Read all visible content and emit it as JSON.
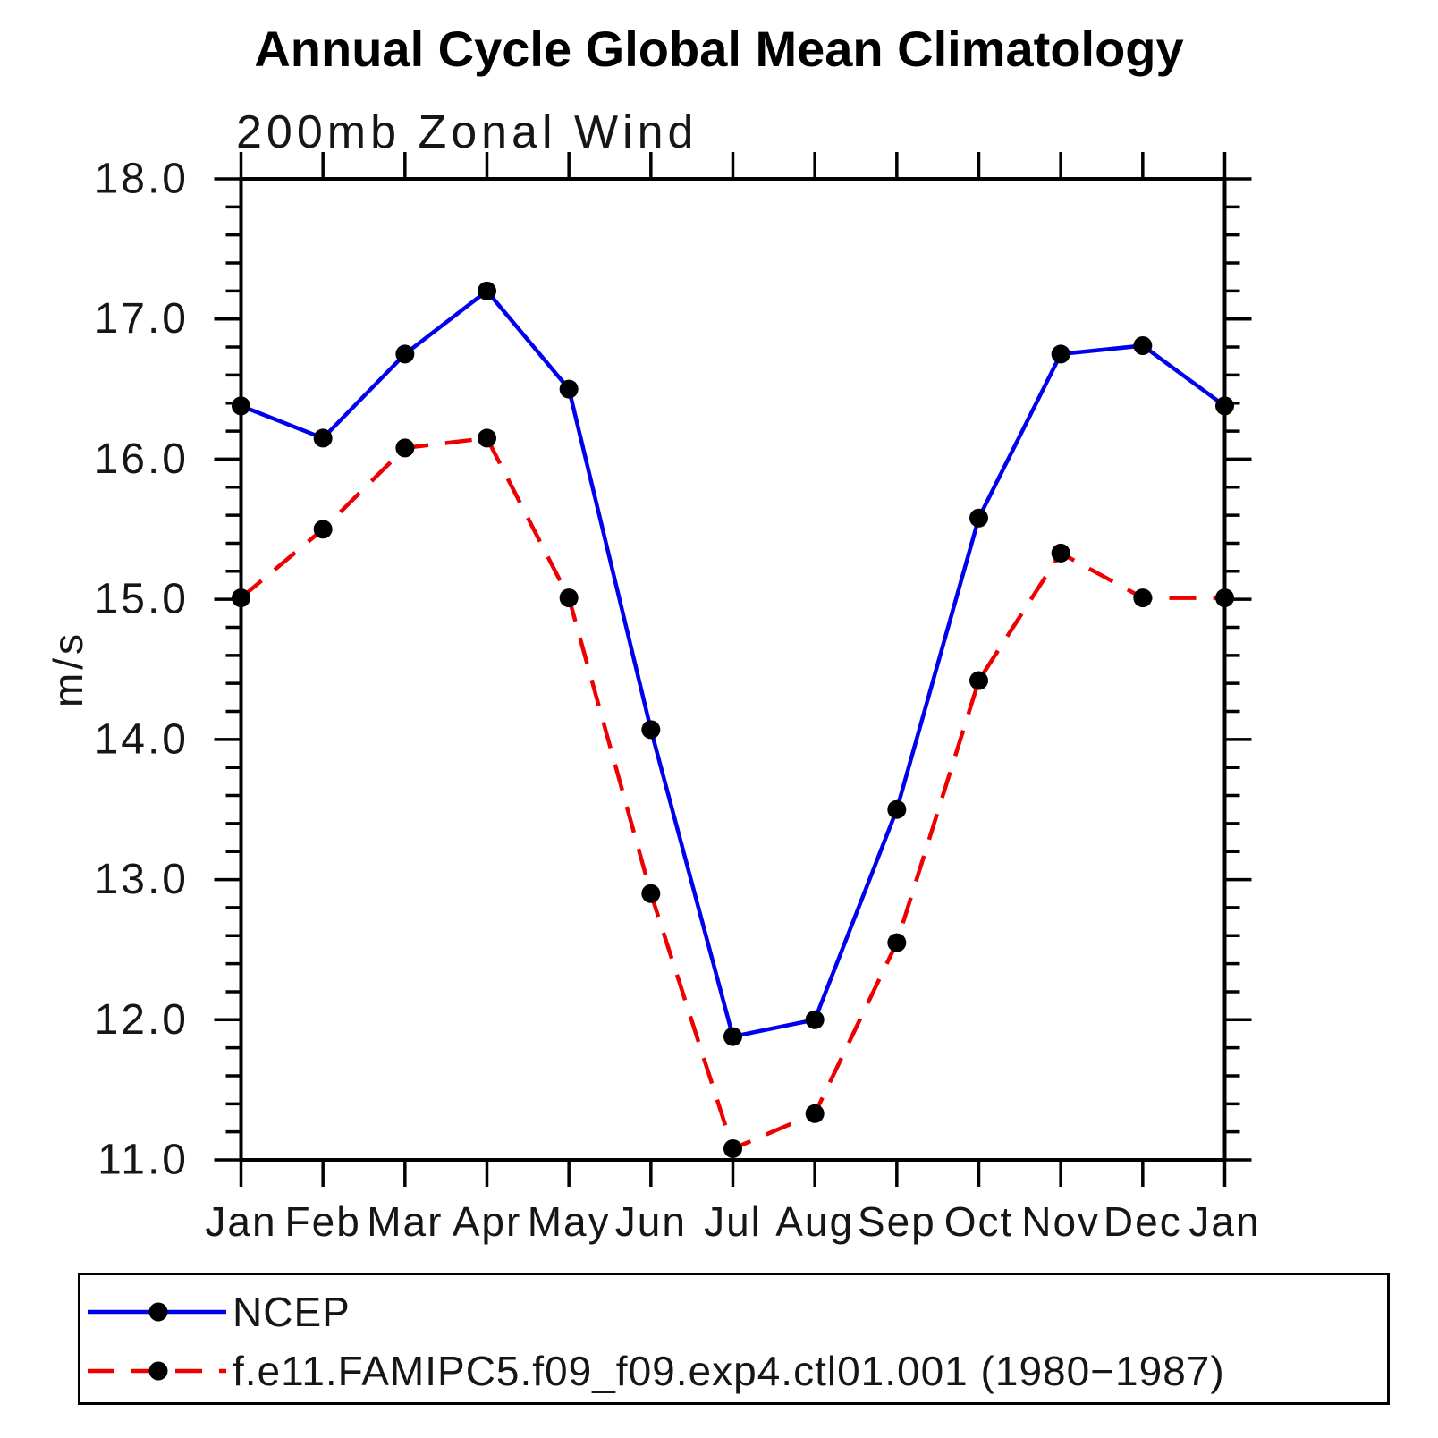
{
  "title": "Annual Cycle Global Mean Climatology",
  "subtitle": "200mb Zonal Wind",
  "ylabel": "m/s",
  "legend": {
    "items": [
      {
        "label": "NCEP",
        "color": "#0000ee",
        "style": "solid"
      },
      {
        "label": "f.e11.FAMIPC5.f09_f09.exp4.ctl01.001 (1980−1987)",
        "color": "#ee0000",
        "style": "dashed"
      }
    ]
  },
  "chart_data": {
    "type": "line",
    "title": "Annual Cycle Global Mean Climatology",
    "subtitle": "200mb Zonal Wind",
    "xlabel": "",
    "ylabel": "m/s",
    "categories": [
      "Jan",
      "Feb",
      "Mar",
      "Apr",
      "May",
      "Jun",
      "Jul",
      "Aug",
      "Sep",
      "Oct",
      "Nov",
      "Dec",
      "Jan"
    ],
    "series": [
      {
        "name": "NCEP",
        "color": "#0000ee",
        "style": "solid",
        "marker": "circle",
        "marker_color": "#000000",
        "values": [
          16.38,
          16.15,
          16.75,
          17.2,
          16.5,
          14.07,
          11.88,
          12.0,
          13.5,
          15.58,
          16.75,
          16.81,
          16.38
        ]
      },
      {
        "name": "f.e11.FAMIPC5.f09_f09.exp4.ctl01.001 (1980−1987)",
        "color": "#ee0000",
        "style": "dashed",
        "marker": "circle",
        "marker_color": "#000000",
        "values": [
          15.01,
          15.5,
          16.08,
          16.15,
          15.01,
          12.9,
          11.08,
          11.33,
          12.55,
          14.42,
          15.33,
          15.01,
          15.01
        ]
      }
    ],
    "ylim": [
      11.0,
      18.0
    ],
    "ytick_step": 1.0,
    "yminor_step": 0.2,
    "ytick_format_decimals": 1,
    "grid": false,
    "tick_direction": "out",
    "legend_position": "bottom"
  }
}
